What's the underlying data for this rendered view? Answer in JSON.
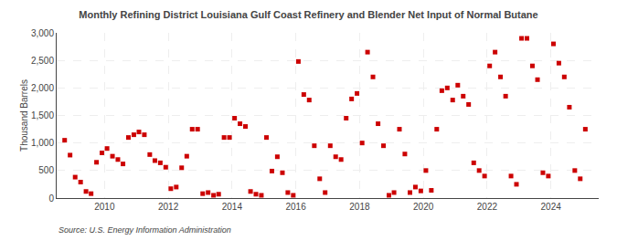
{
  "chart_data": {
    "type": "scatter",
    "title": "Monthly Refining District Louisiana Gulf Coast Refinery and Blender Net Input of Normal Butane",
    "ylabel": "Thousand Barrels",
    "source": "Source: U.S. Energy Information Administration",
    "color": "#cc0000",
    "marker": "square",
    "grid": true,
    "xlim": [
      2008.5,
      2025.5
    ],
    "ylim": [
      0,
      3000
    ],
    "xticks": [
      2010,
      2012,
      2014,
      2016,
      2018,
      2020,
      2022,
      2024
    ],
    "yticks": [
      0,
      500,
      {
        "value": 1000,
        "label": "1,000"
      },
      {
        "value": 1500,
        "label": "1,500"
      },
      {
        "value": 2000,
        "label": "2,000"
      },
      {
        "value": 2500,
        "label": "2,500"
      },
      {
        "value": 3000,
        "label": "3,000"
      }
    ],
    "x": [
      2008.75,
      2008.92,
      2009.08,
      2009.25,
      2009.42,
      2009.58,
      2009.75,
      2009.92,
      2010.08,
      2010.25,
      2010.42,
      2010.58,
      2010.75,
      2010.92,
      2011.08,
      2011.25,
      2011.42,
      2011.58,
      2011.75,
      2011.92,
      2012.08,
      2012.25,
      2012.42,
      2012.58,
      2012.75,
      2012.92,
      2013.08,
      2013.25,
      2013.42,
      2013.58,
      2013.75,
      2013.92,
      2014.08,
      2014.25,
      2014.42,
      2014.58,
      2014.75,
      2014.92,
      2015.08,
      2015.25,
      2015.42,
      2015.58,
      2015.75,
      2015.92,
      2016.08,
      2016.25,
      2016.42,
      2016.58,
      2016.75,
      2016.92,
      2017.08,
      2017.25,
      2017.42,
      2017.58,
      2017.75,
      2017.92,
      2018.08,
      2018.25,
      2018.42,
      2018.58,
      2018.75,
      2018.92,
      2019.08,
      2019.25,
      2019.42,
      2019.58,
      2019.75,
      2019.92,
      2020.08,
      2020.25,
      2020.42,
      2020.58,
      2020.75,
      2020.92,
      2021.08,
      2021.25,
      2021.42,
      2021.58,
      2021.75,
      2021.92,
      2022.08,
      2022.25,
      2022.42,
      2022.58,
      2022.75,
      2022.92,
      2023.08,
      2023.25,
      2023.42,
      2023.58,
      2023.75,
      2023.92,
      2024.08,
      2024.25,
      2024.42,
      2024.58,
      2024.75,
      2024.92,
      2025.08
    ],
    "values": [
      1050,
      780,
      380,
      290,
      120,
      80,
      650,
      820,
      900,
      760,
      700,
      620,
      1100,
      1150,
      1200,
      1150,
      790,
      680,
      640,
      560,
      170,
      200,
      550,
      760,
      1250,
      1250,
      80,
      100,
      50,
      70,
      1100,
      1100,
      1450,
      1350,
      1300,
      120,
      70,
      50,
      1100,
      490,
      750,
      460,
      100,
      50,
      2480,
      1880,
      1780,
      950,
      350,
      100,
      950,
      750,
      700,
      1450,
      1800,
      1900,
      1000,
      2650,
      2200,
      1350,
      950,
      50,
      100,
      1250,
      800,
      100,
      200,
      130,
      500,
      140,
      1250,
      1950,
      2000,
      1780,
      2050,
      1850,
      1700,
      640,
      500,
      400,
      2400,
      2650,
      2200,
      1850,
      400,
      250,
      2900,
      2900,
      2400,
      2150,
      460,
      400,
      2800,
      2450,
      2200,
      1650,
      500,
      350,
      1250
    ]
  }
}
